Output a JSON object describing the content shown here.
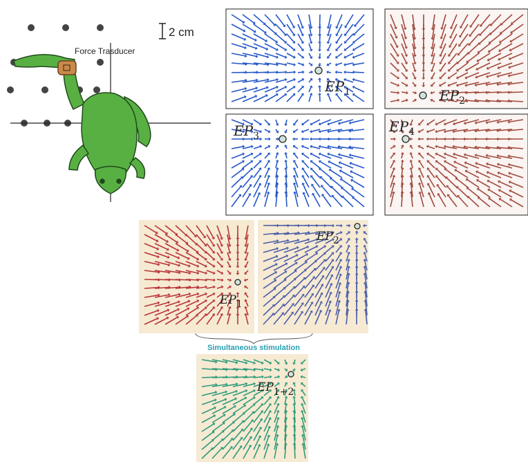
{
  "frog_panel": {
    "scale_label": "2 cm",
    "sensor_label": "Force Trasducer"
  },
  "fields": [
    {
      "label": "EP",
      "subscript": "1"
    },
    {
      "label": "EP",
      "subscript": "2"
    },
    {
      "label": "EP",
      "subscript": "3"
    },
    {
      "label": "EP",
      "subscript": "4"
    }
  ],
  "stimulation": {
    "fields": [
      {
        "label": "EP",
        "subscript": "1"
      },
      {
        "label": "EP",
        "subscript": "2"
      }
    ],
    "caption": "Simultaneous stimulation",
    "combined": {
      "label": "EP",
      "subscript": "1+2"
    }
  }
}
